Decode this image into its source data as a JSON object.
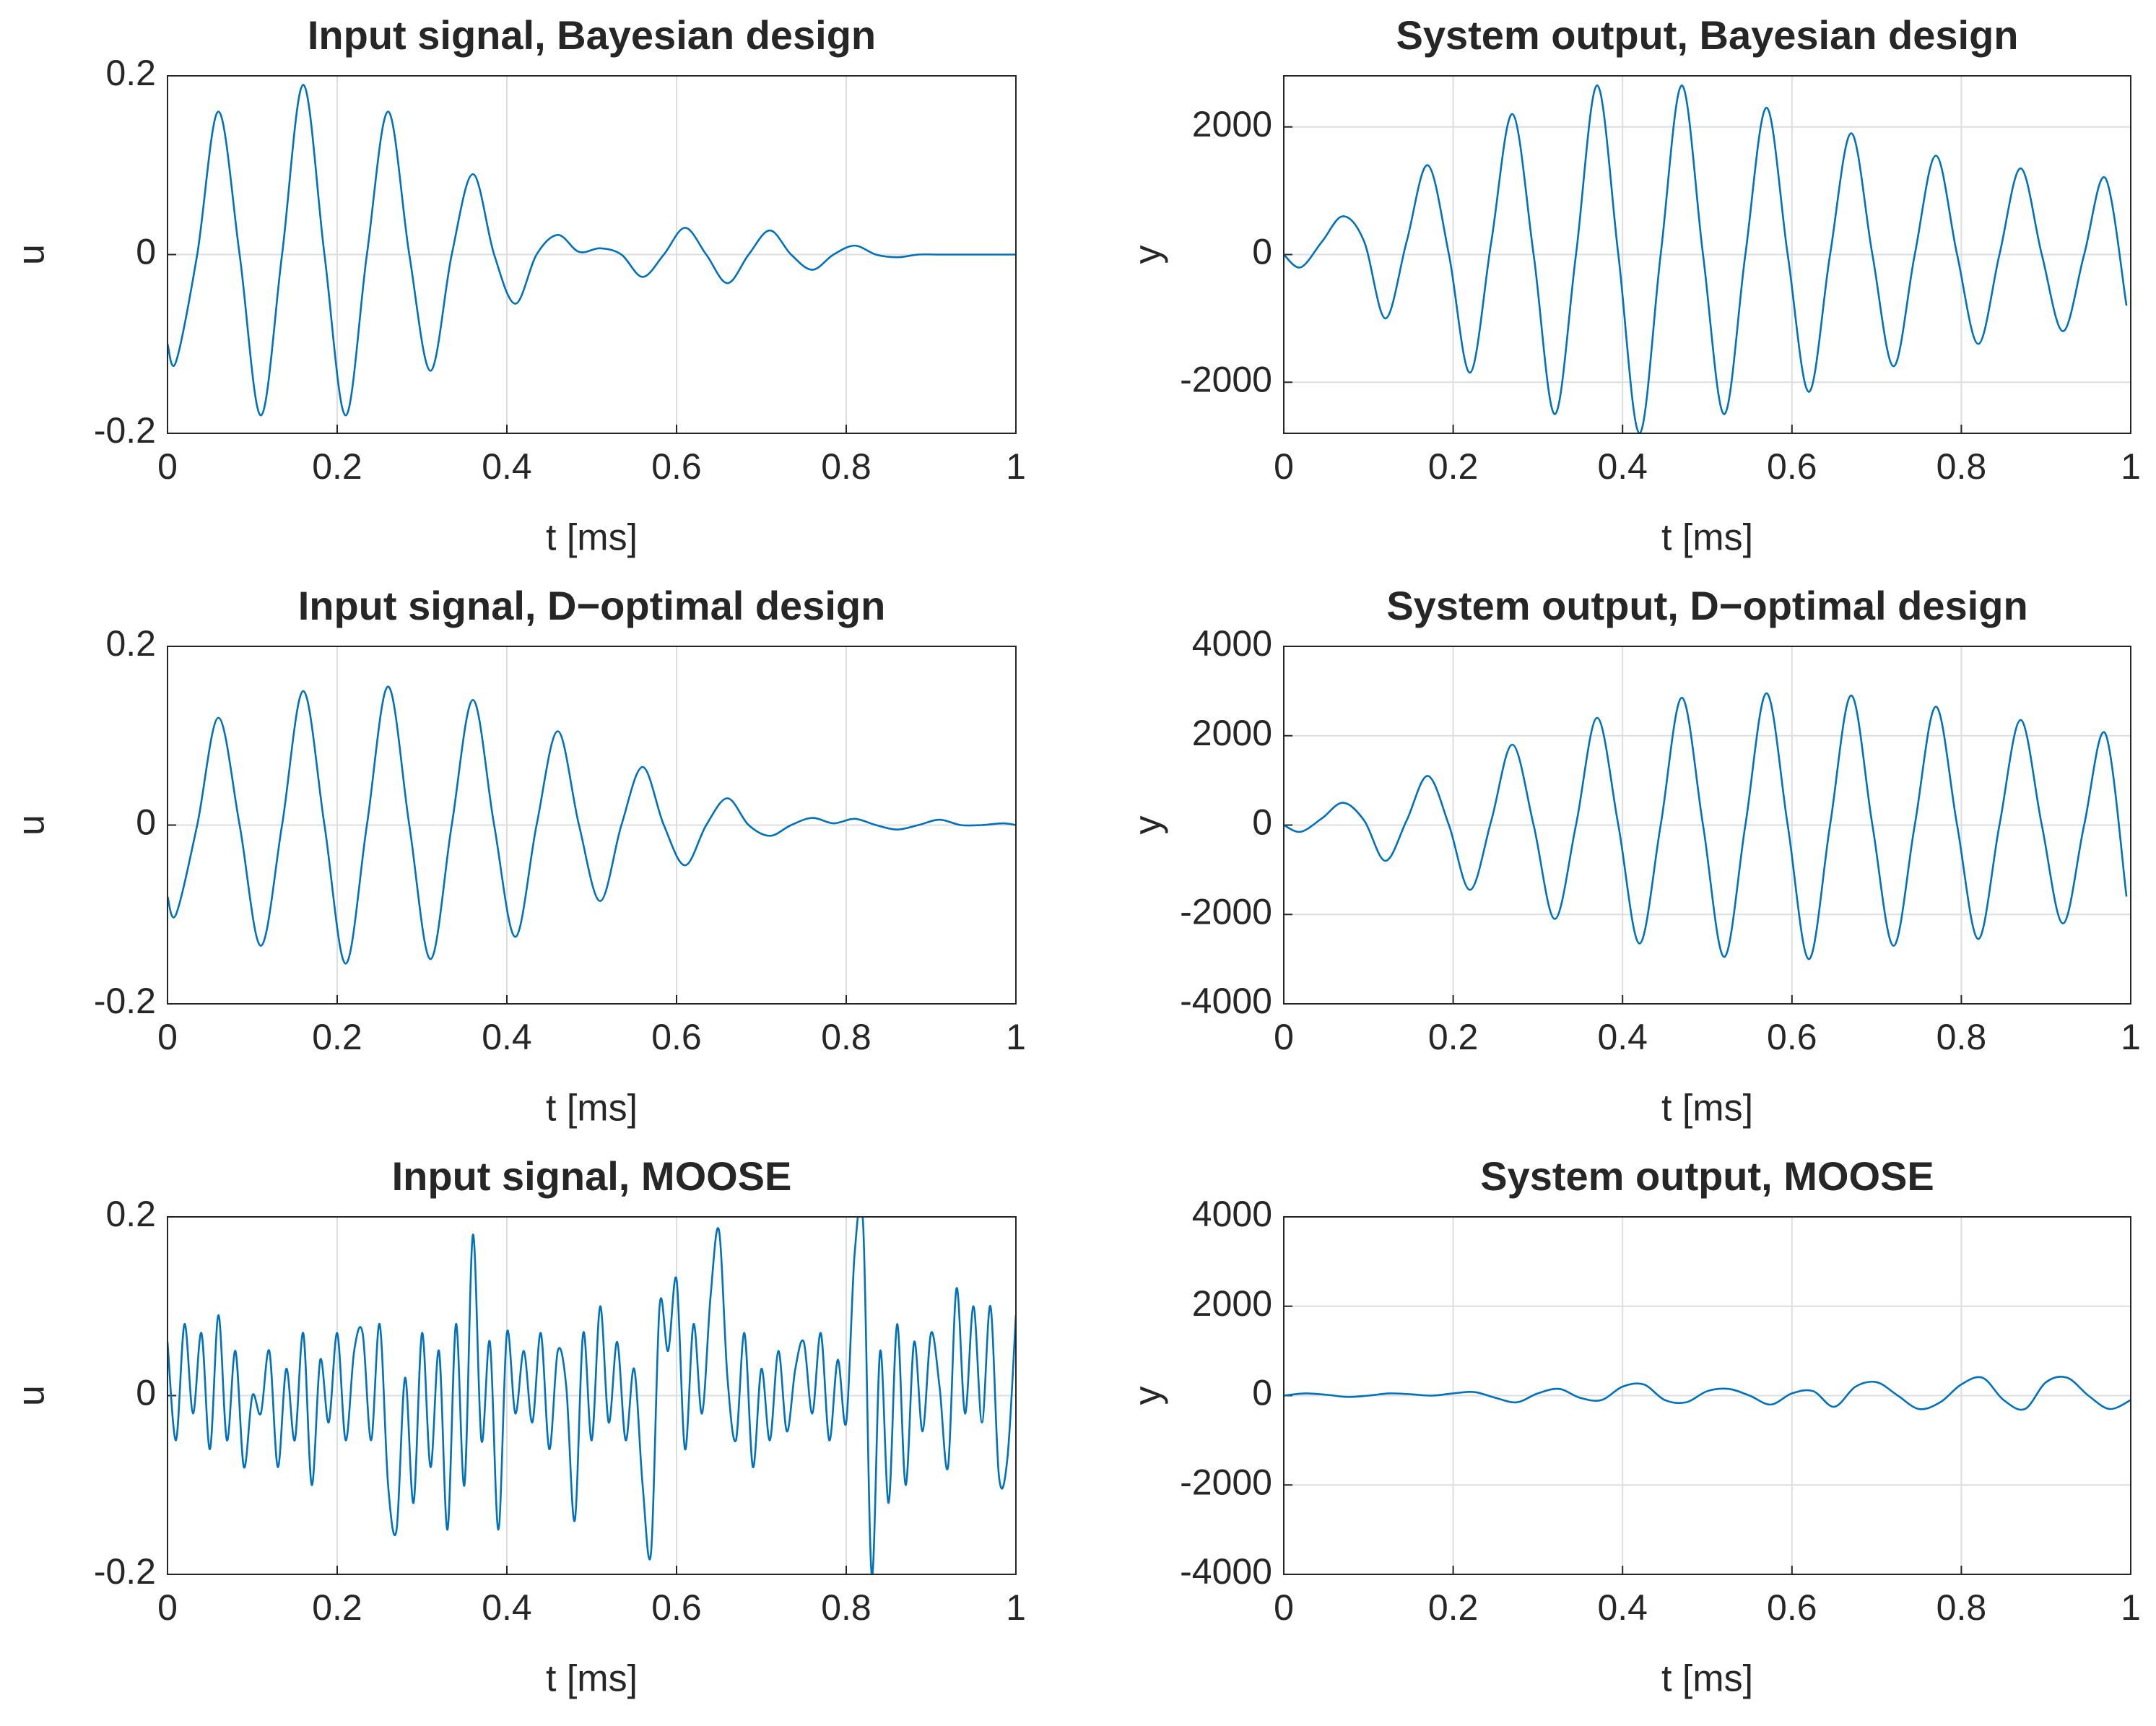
{
  "chart_data": [
    {
      "type": "line",
      "title": "Input signal, Bayesian design",
      "xlabel": "t [ms]",
      "ylabel": "u",
      "xlim": [
        0,
        1
      ],
      "xticks": [
        0,
        0.2,
        0.4,
        0.6,
        0.8,
        1
      ],
      "ylim": [
        -0.2,
        0.2
      ],
      "yticks": [
        -0.2,
        0,
        0.2
      ],
      "grid": true,
      "color": "#0072bd",
      "x": [
        0,
        0.01,
        0.035,
        0.06,
        0.085,
        0.11,
        0.135,
        0.16,
        0.185,
        0.21,
        0.235,
        0.26,
        0.285,
        0.31,
        0.335,
        0.36,
        0.385,
        0.41,
        0.435,
        0.46,
        0.485,
        0.51,
        0.535,
        0.56,
        0.585,
        0.61,
        0.635,
        0.66,
        0.685,
        0.71,
        0.735,
        0.76,
        0.785,
        0.81,
        0.835,
        0.86,
        0.885,
        0.91,
        0.935,
        0.96,
        0.985,
        1
      ],
      "values": [
        -0.1,
        -0.12,
        0,
        0.16,
        0,
        -0.18,
        0,
        0.19,
        0,
        -0.18,
        0,
        0.16,
        0,
        -0.13,
        0,
        0.09,
        0,
        -0.055,
        0,
        0.022,
        0.003,
        0.007,
        0,
        -0.025,
        0,
        0.03,
        0,
        -0.032,
        0,
        0.027,
        0,
        -0.017,
        0,
        0.01,
        0,
        -0.003,
        0,
        0,
        0,
        0,
        0,
        0
      ]
    },
    {
      "type": "line",
      "title": "System output, Bayesian design",
      "xlabel": "t [ms]",
      "ylabel": "y",
      "xlim": [
        0,
        1
      ],
      "xticks": [
        0,
        0.2,
        0.4,
        0.6,
        0.8,
        1
      ],
      "ylim": [
        -2800,
        2800
      ],
      "yticks": [
        -2000,
        0,
        2000
      ],
      "grid": true,
      "color": "#0072bd",
      "x": [
        0,
        0.02,
        0.045,
        0.07,
        0.095,
        0.12,
        0.145,
        0.17,
        0.195,
        0.22,
        0.245,
        0.27,
        0.295,
        0.32,
        0.345,
        0.37,
        0.395,
        0.42,
        0.445,
        0.47,
        0.495,
        0.52,
        0.545,
        0.57,
        0.595,
        0.62,
        0.645,
        0.67,
        0.695,
        0.72,
        0.745,
        0.77,
        0.795,
        0.82,
        0.845,
        0.87,
        0.895,
        0.92,
        0.945,
        0.97,
        0.995
      ],
      "values": [
        0,
        -200,
        200,
        600,
        200,
        -1000,
        200,
        1400,
        0,
        -1850,
        200,
        2200,
        0,
        -2500,
        0,
        2650,
        0,
        -2800,
        0,
        2650,
        0,
        -2500,
        0,
        2300,
        0,
        -2150,
        0,
        1900,
        0,
        -1750,
        0,
        1550,
        0,
        -1400,
        0,
        1350,
        0,
        -1200,
        0,
        1200,
        -800
      ]
    },
    {
      "type": "line",
      "title": "Input signal, D−optimal design",
      "xlabel": "t [ms]",
      "ylabel": "u",
      "xlim": [
        0,
        1
      ],
      "xticks": [
        0,
        0.2,
        0.4,
        0.6,
        0.8,
        1
      ],
      "ylim": [
        -0.2,
        0.2
      ],
      "yticks": [
        -0.2,
        0,
        0.2
      ],
      "grid": true,
      "color": "#0072bd",
      "x": [
        0,
        0.01,
        0.035,
        0.06,
        0.085,
        0.11,
        0.135,
        0.16,
        0.185,
        0.21,
        0.235,
        0.26,
        0.285,
        0.31,
        0.335,
        0.36,
        0.385,
        0.41,
        0.435,
        0.46,
        0.485,
        0.51,
        0.535,
        0.56,
        0.585,
        0.61,
        0.635,
        0.66,
        0.685,
        0.71,
        0.735,
        0.76,
        0.785,
        0.81,
        0.835,
        0.86,
        0.885,
        0.91,
        0.935,
        0.96,
        0.985,
        1
      ],
      "values": [
        -0.08,
        -0.1,
        0,
        0.12,
        0,
        -0.135,
        0,
        0.15,
        0,
        -0.155,
        0,
        0.155,
        0,
        -0.15,
        0,
        0.14,
        0,
        -0.125,
        0,
        0.105,
        0,
        -0.085,
        0,
        0.065,
        0,
        -0.045,
        0,
        0.03,
        0,
        -0.012,
        0,
        0.008,
        0.002,
        0.007,
        0,
        -0.005,
        0,
        0.006,
        0,
        0,
        0.002,
        0
      ]
    },
    {
      "type": "line",
      "title": "System output, D−optimal design",
      "xlabel": "t [ms]",
      "ylabel": "y",
      "xlim": [
        0,
        1
      ],
      "xticks": [
        0,
        0.2,
        0.4,
        0.6,
        0.8,
        1
      ],
      "ylim": [
        -4000,
        4000
      ],
      "yticks": [
        -4000,
        -2000,
        0,
        2000,
        4000
      ],
      "grid": true,
      "color": "#0072bd",
      "x": [
        0,
        0.02,
        0.045,
        0.07,
        0.095,
        0.12,
        0.145,
        0.17,
        0.195,
        0.22,
        0.245,
        0.27,
        0.295,
        0.32,
        0.345,
        0.37,
        0.395,
        0.42,
        0.445,
        0.47,
        0.495,
        0.52,
        0.545,
        0.57,
        0.595,
        0.62,
        0.645,
        0.67,
        0.695,
        0.72,
        0.745,
        0.77,
        0.795,
        0.82,
        0.845,
        0.87,
        0.895,
        0.92,
        0.945,
        0.97,
        0.995
      ],
      "values": [
        0,
        -150,
        150,
        500,
        100,
        -800,
        100,
        1100,
        0,
        -1450,
        100,
        1800,
        0,
        -2100,
        0,
        2400,
        0,
        -2650,
        0,
        2850,
        0,
        -2950,
        0,
        2950,
        0,
        -3000,
        0,
        2900,
        0,
        -2700,
        0,
        2650,
        0,
        -2550,
        0,
        2350,
        0,
        -2200,
        0,
        2050,
        -1600
      ]
    },
    {
      "type": "line",
      "title": "Input signal, MOOSE",
      "xlabel": "t [ms]",
      "ylabel": "u",
      "xlim": [
        0,
        1
      ],
      "xticks": [
        0,
        0.2,
        0.4,
        0.6,
        0.8,
        1
      ],
      "ylim": [
        -0.2,
        0.2
      ],
      "yticks": [
        -0.2,
        0,
        0.2
      ],
      "grid": true,
      "color": "#0072bd",
      "x": [
        0,
        0.01,
        0.02,
        0.03,
        0.04,
        0.05,
        0.06,
        0.07,
        0.08,
        0.09,
        0.1,
        0.11,
        0.12,
        0.13,
        0.14,
        0.15,
        0.16,
        0.17,
        0.18,
        0.19,
        0.2,
        0.21,
        0.22,
        0.23,
        0.24,
        0.25,
        0.26,
        0.27,
        0.28,
        0.29,
        0.3,
        0.31,
        0.32,
        0.33,
        0.34,
        0.35,
        0.36,
        0.37,
        0.38,
        0.39,
        0.4,
        0.41,
        0.42,
        0.43,
        0.44,
        0.45,
        0.46,
        0.47,
        0.48,
        0.49,
        0.5,
        0.51,
        0.52,
        0.53,
        0.54,
        0.55,
        0.56,
        0.57,
        0.58,
        0.59,
        0.6,
        0.61,
        0.62,
        0.63,
        0.64,
        0.65,
        0.66,
        0.67,
        0.68,
        0.69,
        0.7,
        0.71,
        0.72,
        0.73,
        0.74,
        0.75,
        0.76,
        0.77,
        0.78,
        0.79,
        0.8,
        0.81,
        0.82,
        0.83,
        0.84,
        0.85,
        0.86,
        0.87,
        0.88,
        0.89,
        0.9,
        0.91,
        0.92,
        0.93,
        0.94,
        0.95,
        0.96,
        0.97,
        0.98,
        0.99,
        1
      ],
      "values": [
        0.06,
        -0.05,
        0.08,
        -0.02,
        0.07,
        -0.06,
        0.09,
        -0.05,
        0.05,
        -0.08,
        0,
        -0.02,
        0.05,
        -0.08,
        0.03,
        -0.05,
        0.07,
        -0.1,
        0.04,
        -0.03,
        0.07,
        -0.05,
        0.05,
        0.07,
        -0.05,
        0.08,
        -0.1,
        -0.15,
        0.02,
        -0.12,
        0.07,
        -0.08,
        0.05,
        -0.15,
        0.08,
        -0.1,
        0.18,
        -0.05,
        0.06,
        -0.15,
        0.07,
        -0.02,
        0.05,
        -0.03,
        0.07,
        -0.06,
        0.05,
        0.01,
        -0.14,
        0.07,
        -0.05,
        0.1,
        -0.03,
        0.06,
        -0.05,
        0.03,
        -0.1,
        -0.175,
        0.1,
        0.05,
        0.13,
        -0.06,
        0.08,
        -0.02,
        0.11,
        0.185,
        0.02,
        -0.05,
        0.07,
        -0.08,
        0.03,
        -0.05,
        0.05,
        -0.04,
        0.03,
        0.06,
        -0.02,
        0.07,
        -0.05,
        0.04,
        -0.03,
        0.16,
        0.19,
        -0.2,
        0.05,
        -0.12,
        0.08,
        -0.1,
        0.06,
        -0.04,
        0.07,
        0.01,
        -0.08,
        0.12,
        -0.02,
        0.1,
        -0.03,
        0.1,
        -0.09,
        -0.07,
        0.09
      ]
    },
    {
      "type": "line",
      "title": "System output, MOOSE",
      "xlabel": "t [ms]",
      "ylabel": "y",
      "xlim": [
        0,
        1
      ],
      "xticks": [
        0,
        0.2,
        0.4,
        0.6,
        0.8,
        1
      ],
      "ylim": [
        -4000,
        4000
      ],
      "yticks": [
        -4000,
        -2000,
        0,
        2000,
        4000
      ],
      "grid": true,
      "color": "#0072bd",
      "x": [
        0,
        0.025,
        0.05,
        0.075,
        0.1,
        0.125,
        0.15,
        0.175,
        0.2,
        0.225,
        0.25,
        0.275,
        0.3,
        0.325,
        0.35,
        0.375,
        0.4,
        0.425,
        0.45,
        0.475,
        0.5,
        0.525,
        0.55,
        0.575,
        0.6,
        0.625,
        0.65,
        0.675,
        0.7,
        0.725,
        0.75,
        0.775,
        0.8,
        0.825,
        0.85,
        0.875,
        0.9,
        0.925,
        0.95,
        0.975,
        1
      ],
      "values": [
        0,
        50,
        20,
        -30,
        0,
        50,
        30,
        0,
        50,
        80,
        -50,
        -150,
        50,
        150,
        -50,
        -100,
        200,
        250,
        -100,
        -150,
        100,
        150,
        0,
        -200,
        50,
        100,
        -250,
        200,
        300,
        0,
        -300,
        -150,
        250,
        400,
        -100,
        -300,
        300,
        400,
        0,
        -300,
        -100
      ]
    }
  ]
}
